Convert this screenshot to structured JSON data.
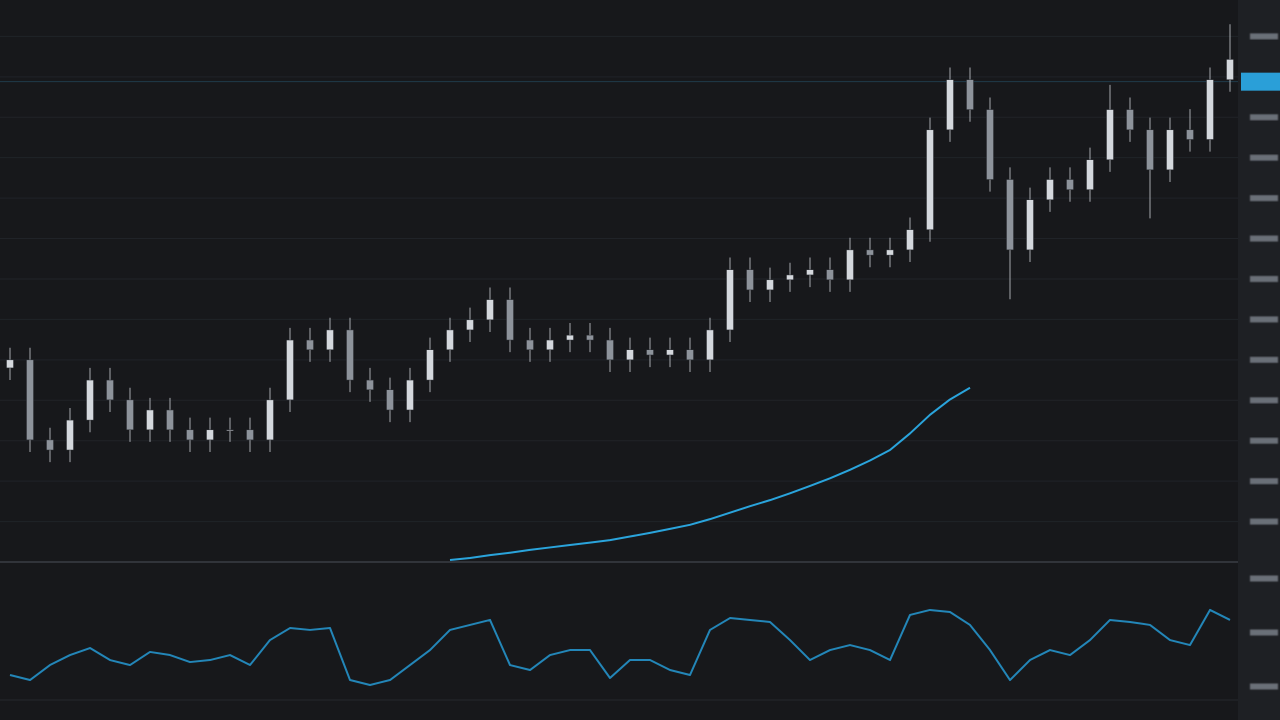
{
  "chart_data": [
    {
      "type": "candlestick",
      "ylim": [
        0,
        139
      ],
      "yticks": [
        10,
        20,
        30,
        40,
        50,
        60,
        70,
        80,
        90,
        100,
        110,
        120,
        130
      ],
      "grid": true,
      "color": "#c9cdd3",
      "current_price": 118.8,
      "current_price_color": "#2a9fd8",
      "open": [
        48,
        50,
        30.2,
        27.7,
        35.1,
        45,
        40.1,
        32.7,
        37.6,
        32.7,
        30.2,
        32.7,
        32.7,
        30.2,
        40.1,
        54.9,
        52.5,
        57.4,
        45,
        42.6,
        37.6,
        45,
        52.5,
        57.4,
        59.9,
        64.9,
        54.9,
        52.5,
        54.9,
        56.1,
        54.9,
        50,
        52.5,
        51.2,
        52.5,
        50,
        57.4,
        72.3,
        67.3,
        69.8,
        71,
        72.3,
        69.8,
        77.2,
        75.9,
        77.2,
        82.2,
        106.9,
        119.3,
        111.9,
        94.6,
        77.2,
        89.6,
        94.6,
        92.1,
        99.5,
        111.9,
        106.9,
        97,
        106.9,
        104.5,
        119.3
      ],
      "high": [
        53,
        53,
        33.2,
        38.1,
        48,
        48,
        43.1,
        40.6,
        40.6,
        35.7,
        35.7,
        35.7,
        35.7,
        43.1,
        57.9,
        57.9,
        60.4,
        60.4,
        48,
        45.6,
        48,
        55.5,
        60.4,
        62.9,
        67.9,
        67.9,
        57.9,
        57.9,
        59.1,
        59.1,
        57.9,
        55.5,
        55.5,
        55.5,
        55.5,
        60.4,
        75.3,
        75.3,
        72.8,
        74,
        75.3,
        75.3,
        80.2,
        80.2,
        80.2,
        85.2,
        109.9,
        122.3,
        122.3,
        114.9,
        97.6,
        92.6,
        97.6,
        97.6,
        102.5,
        118,
        114.9,
        109.9,
        109.9,
        112,
        122.3,
        133
      ],
      "low": [
        45,
        27.2,
        24.7,
        24.7,
        32.1,
        37.1,
        29.7,
        29.7,
        29.7,
        27.2,
        27.2,
        29.7,
        27.2,
        27.2,
        37.1,
        49.5,
        49.5,
        42,
        39.6,
        34.6,
        34.6,
        42,
        49.5,
        54.4,
        56.9,
        51.9,
        49.5,
        49.5,
        51.9,
        51.9,
        47,
        47,
        48.2,
        48.2,
        47,
        47,
        54.4,
        64.3,
        64.3,
        66.8,
        68,
        66.8,
        66.8,
        72.9,
        72.9,
        74.2,
        79.2,
        103.9,
        108.9,
        91.6,
        65,
        74.2,
        86.6,
        89.1,
        89.1,
        96.5,
        103.9,
        85,
        94,
        101.5,
        101.5,
        116.3
      ],
      "close": [
        50,
        30.2,
        27.7,
        35.1,
        45,
        40.1,
        32.7,
        37.6,
        32.7,
        30.2,
        32.7,
        32.7,
        30.2,
        40.1,
        54.9,
        52.5,
        57.4,
        45,
        42.6,
        37.6,
        45,
        52.5,
        57.4,
        59.9,
        64.9,
        54.9,
        52.5,
        54.9,
        56.1,
        54.9,
        50,
        52.5,
        51.2,
        52.5,
        50,
        57.4,
        72.3,
        67.3,
        69.8,
        71,
        72.3,
        69.8,
        77.2,
        75.9,
        77.2,
        82.2,
        106.9,
        119.3,
        111.9,
        94.6,
        77.2,
        89.6,
        94.6,
        92.1,
        99.5,
        111.9,
        106.9,
        97,
        106.9,
        104.5,
        119.3,
        124.3
      ],
      "series": [
        {
          "color": "#2aa4dc",
          "values": [
            null,
            null,
            null,
            null,
            null,
            null,
            null,
            null,
            null,
            null,
            null,
            null,
            null,
            null,
            null,
            null,
            null,
            null,
            null,
            null,
            null,
            null,
            0.5,
            1,
            1.7,
            2.3,
            3,
            3.6,
            4.2,
            4.8,
            5.4,
            6.3,
            7.2,
            8.2,
            9.2,
            10.6,
            12.2,
            13.8,
            15.3,
            17,
            18.8,
            20.7,
            22.8,
            25.1,
            27.7,
            31.8,
            36.4,
            40.2,
            43.1,
            null,
            null,
            null,
            null,
            null,
            null,
            null,
            null,
            null,
            null,
            null,
            null,
            null
          ]
        }
      ]
    },
    {
      "type": "line",
      "ylim": [
        0,
        100
      ],
      "yticks": [
        10,
        50,
        90
      ],
      "series": [
        {
          "color": "#2386b8",
          "values": [
            18.5,
            14.8,
            25.9,
            33.3,
            38.5,
            29.6,
            25.9,
            35.6,
            33.3,
            28.1,
            29.6,
            33.3,
            25.9,
            44.4,
            53.3,
            51.9,
            53.3,
            14.8,
            11.1,
            14.8,
            25.9,
            37,
            51.9,
            55.6,
            59.3,
            25.9,
            22.2,
            33.3,
            37,
            37,
            16.3,
            29.6,
            29.6,
            22.2,
            18.5,
            51.9,
            60.7,
            59.3,
            57.8,
            44.4,
            29.6,
            37,
            40.7,
            37,
            29.6,
            63,
            66.7,
            65.2,
            55.6,
            37,
            14.8,
            29.6,
            37,
            33.3,
            44.4,
            59.3,
            57.8,
            55.6,
            44.4,
            40.7,
            66.7,
            59.3
          ]
        }
      ]
    }
  ]
}
